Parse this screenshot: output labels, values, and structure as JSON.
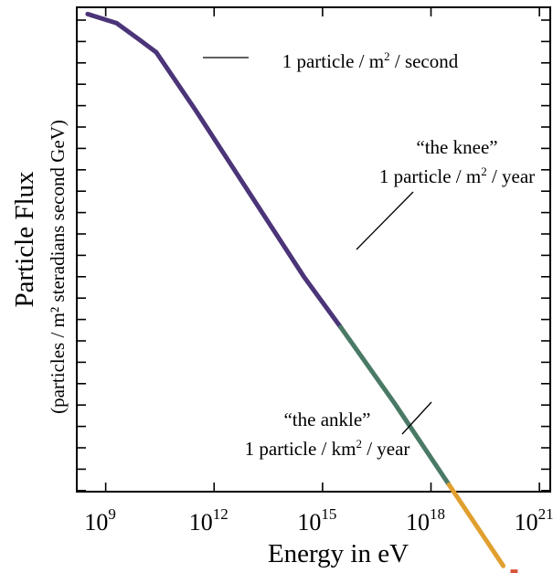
{
  "chart_data": {
    "type": "line",
    "title": "",
    "xlabel": "Energy in eV",
    "ylabel": "Particle Flux",
    "ylabel_sub": "(particles / m² steradians second GeV)",
    "x_scale": "log",
    "x_ticks": [
      {
        "exp": 9,
        "base": "10",
        "sup": "9"
      },
      {
        "exp": 12,
        "base": "10",
        "sup": "12"
      },
      {
        "exp": 15,
        "base": "10",
        "sup": "15"
      },
      {
        "exp": 18,
        "base": "10",
        "sup": "18"
      },
      {
        "exp": 21,
        "base": "10",
        "sup": "21"
      }
    ],
    "xlim_exp": [
      8.2,
      21.3
    ],
    "grid": false,
    "series": [
      {
        "segment": "low",
        "color": "#4b3478",
        "x_exp": [
          8.5,
          9.3,
          9.9,
          10.4,
          11.5,
          13.0,
          14.5,
          15.5
        ],
        "level": [
          0.985,
          0.965,
          0.93,
          0.9,
          0.77,
          0.585,
          0.4,
          0.29
        ]
      },
      {
        "segment": "mid",
        "color": "#4a7a66",
        "x_exp": [
          15.5,
          17.0,
          18.5
        ],
        "level": [
          0.29,
          0.12,
          -0.06
        ]
      },
      {
        "segment": "high",
        "color": "#e0a030",
        "x_exp": [
          18.5,
          19.5,
          20.0
        ],
        "level": [
          -0.06,
          -0.18,
          -0.24
        ]
      },
      {
        "segment": "highest",
        "color": "#d9533b",
        "points": [
          {
            "x_exp": [
              20.2,
              20.4
            ],
            "level": [
              -0.253,
              -0.253
            ]
          },
          {
            "x_exp": [
              20.4,
              20.6
            ],
            "level": [
              -0.285,
              -0.285
            ]
          }
        ]
      }
    ],
    "annotations": [
      {
        "id": "second",
        "lines": [
          {
            "parts": [
              {
                "t": "1 particle / m"
              },
              {
                "t": "2",
                "sup": true
              },
              {
                "t": " / second"
              }
            ]
          }
        ]
      },
      {
        "id": "knee",
        "lines": [
          {
            "parts": [
              {
                "t": "“the knee”"
              }
            ]
          },
          {
            "parts": [
              {
                "t": "1 particle / m"
              },
              {
                "t": "2",
                "sup": true
              },
              {
                "t": " / year"
              }
            ]
          }
        ]
      },
      {
        "id": "ankle",
        "lines": [
          {
            "parts": [
              {
                "t": "“the ankle”"
              }
            ]
          },
          {
            "parts": [
              {
                "t": "1 particle / km"
              },
              {
                "t": "2",
                "sup": true
              },
              {
                "t": " / year"
              }
            ]
          }
        ]
      }
    ]
  }
}
